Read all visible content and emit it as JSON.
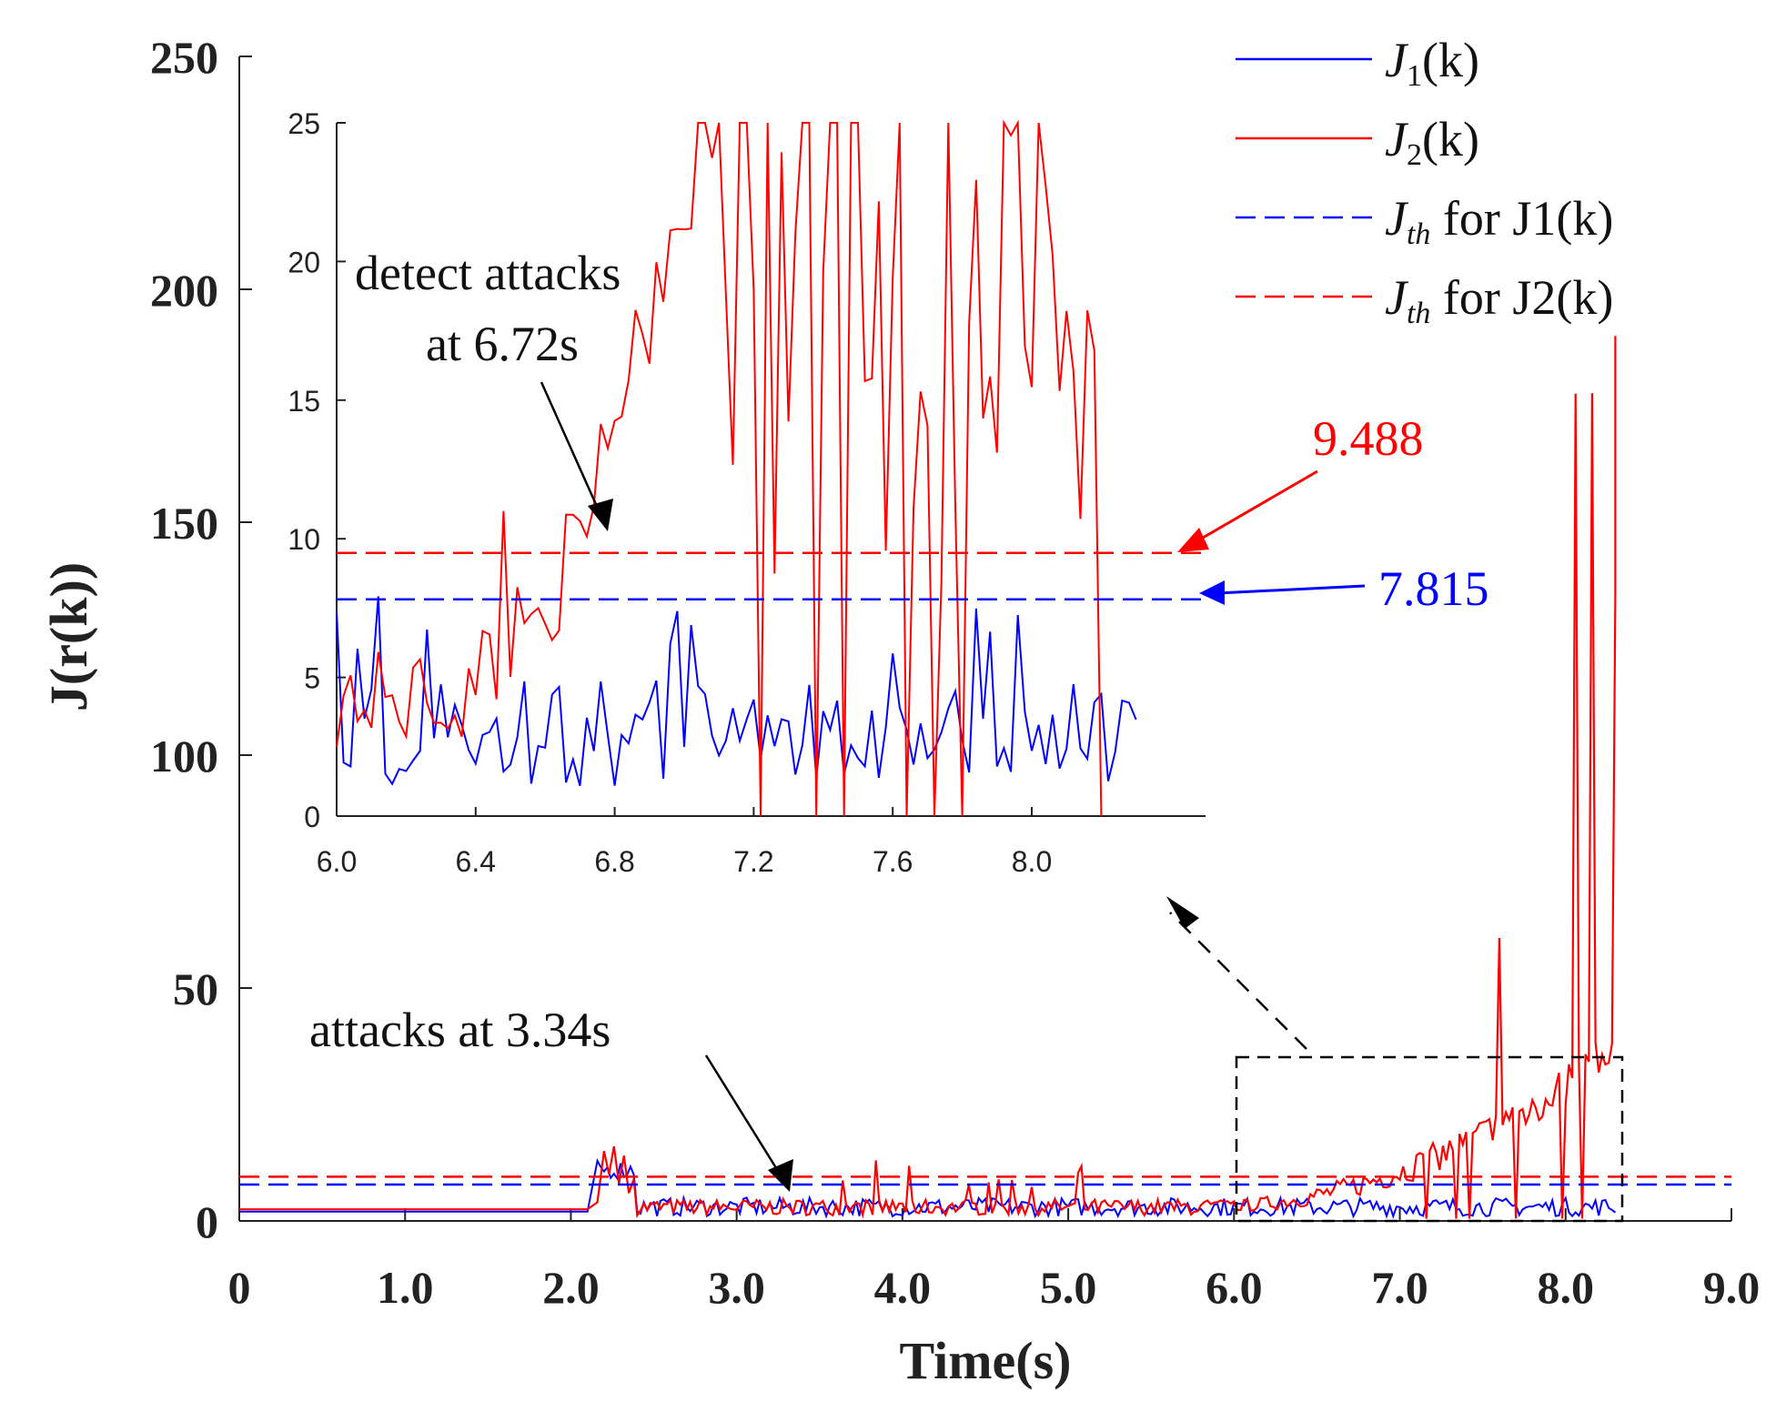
{
  "chart_data": {
    "type": "line",
    "main": {
      "xlabel": "Time(s)",
      "ylabel": "J(r(k))",
      "xlim": [
        0,
        9
      ],
      "ylim": [
        0,
        250
      ],
      "xticks": [
        0,
        1,
        2,
        3,
        4,
        5,
        6,
        7,
        8,
        9
      ],
      "xtick_labels": [
        "0",
        "1.0",
        "2.0",
        "3.0",
        "4.0",
        "5.0",
        "6.0",
        "7.0",
        "8.0",
        "9.0"
      ],
      "yticks": [
        0,
        50,
        100,
        150,
        200,
        250
      ],
      "ytick_labels": [
        "0",
        "50",
        "100",
        "150",
        "200",
        "250"
      ]
    },
    "inset": {
      "xlim": [
        6.0,
        8.5
      ],
      "ylim": [
        0,
        25
      ],
      "xticks": [
        6.0,
        6.4,
        6.8,
        7.2,
        7.6,
        8.0
      ],
      "xtick_labels": [
        "6.0",
        "6.4",
        "6.8",
        "7.2",
        "7.6",
        "8.0"
      ],
      "yticks": [
        0,
        5,
        10,
        15,
        20,
        25
      ],
      "ytick_labels": [
        "0",
        "5",
        "10",
        "15",
        "20",
        "25"
      ]
    },
    "series": [
      {
        "name": "J1(k)",
        "color": "#0000ff",
        "style": "solid"
      },
      {
        "name": "J2(k)",
        "color": "#ff0000",
        "style": "solid"
      },
      {
        "name": "Jth for J1(k)",
        "color": "#0000ff",
        "style": "dashed",
        "value": 7.815
      },
      {
        "name": "Jth for J2(k)",
        "color": "#ff0000",
        "style": "dashed",
        "value": 9.488
      }
    ],
    "thresholds": {
      "j1": 7.815,
      "j2": 9.488
    },
    "zoom_box": {
      "x": [
        6.0,
        8.3
      ],
      "y": [
        0,
        35
      ]
    },
    "annotations": {
      "detect_line1": "detect attacks",
      "detect_line2": "at 6.72s",
      "attacks": "attacks at 3.34s",
      "threshold_red": "9.488",
      "threshold_blue": "7.815"
    },
    "legend": {
      "position": "top-right",
      "entries": [
        {
          "sym": "J",
          "sub": "1",
          "rest": "(k)"
        },
        {
          "sym": "J",
          "sub": "2",
          "rest": "(k)"
        },
        {
          "sym": "J",
          "sub": "th",
          "rest": " for J1(k)"
        },
        {
          "sym": "J",
          "sub": "th",
          "rest": " for J2(k)"
        }
      ]
    }
  }
}
